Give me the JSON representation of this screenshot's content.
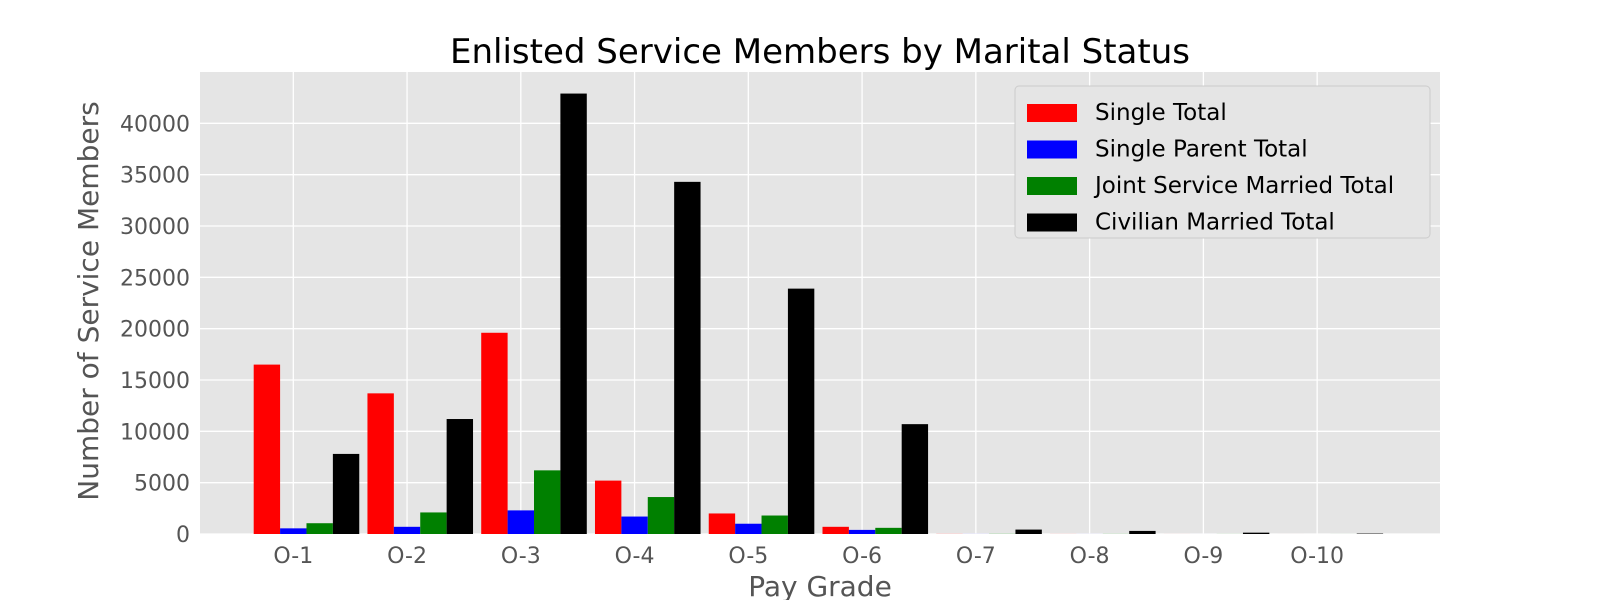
{
  "chart_data": {
    "type": "bar",
    "title": "Enlisted Service Members by Marital Status",
    "xlabel": "Pay Grade",
    "ylabel": "Number of Service Members",
    "categories": [
      "O-1",
      "O-2",
      "O-3",
      "O-4",
      "O-5",
      "O-6",
      "O-7",
      "O-8",
      "O-9",
      "O-10"
    ],
    "series": [
      {
        "name": "Single Total",
        "color": "#ff0000",
        "values": [
          16500,
          13700,
          19600,
          5200,
          2000,
          700,
          10,
          5,
          2,
          1
        ]
      },
      {
        "name": "Single Parent Total",
        "color": "#0000ff",
        "values": [
          550,
          700,
          2300,
          1700,
          1000,
          400,
          5,
          3,
          1,
          0
        ]
      },
      {
        "name": "Joint Service Married Total",
        "color": "#008000",
        "values": [
          1050,
          2100,
          6200,
          3600,
          1800,
          600,
          15,
          10,
          5,
          2
        ]
      },
      {
        "name": "Civilian Married Total",
        "color": "#000000",
        "values": [
          7800,
          11200,
          42900,
          34300,
          23900,
          10700,
          430,
          300,
          130,
          40
        ]
      }
    ],
    "ylim": [
      0,
      45000
    ],
    "yticks": [
      0,
      5000,
      10000,
      15000,
      20000,
      25000,
      30000,
      35000,
      40000
    ],
    "grid": true,
    "legend_position": "top-right",
    "background": "#e5e5e5"
  }
}
